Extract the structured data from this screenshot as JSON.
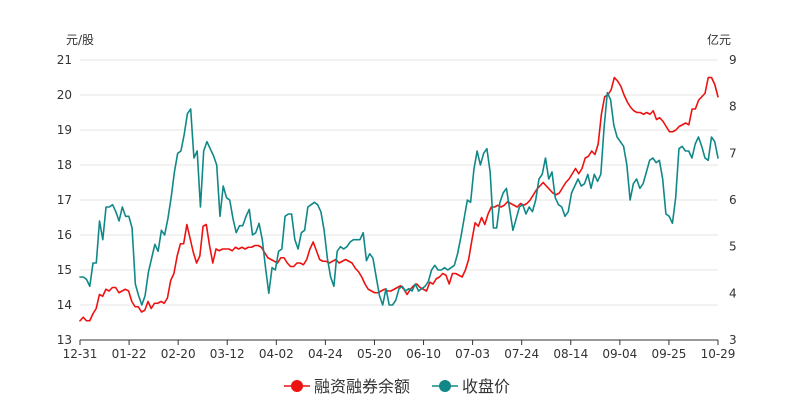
{
  "chart_data": {
    "type": "line",
    "left_unit": "元/股",
    "right_unit": "亿元",
    "y_left": {
      "min": 13,
      "max": 21,
      "ticks": [
        "13",
        "14",
        "15",
        "16",
        "17",
        "18",
        "19",
        "20",
        "21"
      ]
    },
    "y_right": {
      "min": 3,
      "max": 9,
      "ticks": [
        "3",
        "4",
        "5",
        "6",
        "7",
        "8",
        "9"
      ]
    },
    "x_tick_labels": [
      "12-31",
      "01-22",
      "02-20",
      "03-12",
      "04-02",
      "04-24",
      "05-20",
      "06-10",
      "07-03",
      "07-24",
      "08-14",
      "09-04",
      "09-25",
      "10-29"
    ],
    "series": [
      {
        "name": "融资融券余额",
        "axis": "left",
        "color": "#ee1111",
        "values": [
          13.55,
          13.65,
          13.55,
          13.55,
          13.75,
          13.9,
          14.3,
          14.25,
          14.45,
          14.4,
          14.5,
          14.5,
          14.35,
          14.4,
          14.45,
          14.4,
          14.1,
          13.95,
          13.95,
          13.8,
          13.85,
          14.1,
          13.9,
          14.05,
          14.05,
          14.1,
          14.05,
          14.2,
          14.7,
          14.9,
          15.4,
          15.75,
          15.75,
          16.3,
          15.9,
          15.5,
          15.2,
          15.4,
          16.25,
          16.3,
          15.7,
          15.2,
          15.6,
          15.55,
          15.6,
          15.6,
          15.6,
          15.55,
          15.65,
          15.6,
          15.65,
          15.6,
          15.65,
          15.65,
          15.7,
          15.7,
          15.65,
          15.5,
          15.35,
          15.3,
          15.25,
          15.2,
          15.35,
          15.35,
          15.2,
          15.1,
          15.1,
          15.2,
          15.2,
          15.15,
          15.3,
          15.6,
          15.8,
          15.55,
          15.3,
          15.25,
          15.25,
          15.2,
          15.25,
          15.3,
          15.2,
          15.25,
          15.3,
          15.25,
          15.2,
          15.05,
          14.95,
          14.8,
          14.6,
          14.45,
          14.4,
          14.35,
          14.35,
          14.4,
          14.45,
          14.4,
          14.4,
          14.45,
          14.5,
          14.55,
          14.45,
          14.3,
          14.45,
          14.55,
          14.6,
          14.5,
          14.45,
          14.4,
          14.65,
          14.6,
          14.75,
          14.8,
          14.9,
          14.85,
          14.6,
          14.9,
          14.9,
          14.85,
          14.8,
          15.0,
          15.3,
          15.85,
          16.35,
          16.25,
          16.5,
          16.3,
          16.6,
          16.8,
          16.8,
          16.85,
          16.8,
          16.85,
          16.95,
          16.9,
          16.85,
          16.8,
          16.9,
          16.85,
          16.9,
          17.0,
          17.15,
          17.3,
          17.4,
          17.5,
          17.4,
          17.3,
          17.2,
          17.15,
          17.2,
          17.35,
          17.5,
          17.6,
          17.75,
          17.9,
          17.75,
          17.9,
          18.2,
          18.25,
          18.4,
          18.3,
          18.6,
          19.45,
          19.95,
          20.0,
          20.15,
          20.5,
          20.4,
          20.25,
          20.0,
          19.8,
          19.65,
          19.55,
          19.5,
          19.5,
          19.45,
          19.5,
          19.45,
          19.55,
          19.3,
          19.35,
          19.25,
          19.1,
          18.95,
          18.95,
          19.0,
          19.1,
          19.15,
          19.2,
          19.15,
          19.6,
          19.6,
          19.85,
          19.95,
          20.05,
          20.5,
          20.5,
          20.3,
          19.95
        ]
      },
      {
        "name": "收盘价",
        "axis": "right",
        "color": "#118888",
        "values": [
          4.35,
          4.35,
          4.3,
          4.15,
          4.65,
          4.65,
          5.55,
          5.15,
          5.85,
          5.85,
          5.9,
          5.75,
          5.55,
          5.85,
          5.65,
          5.65,
          5.4,
          4.2,
          3.95,
          3.75,
          3.95,
          4.45,
          4.75,
          5.05,
          4.9,
          5.35,
          5.25,
          5.6,
          6.05,
          6.6,
          7.0,
          7.05,
          7.4,
          7.85,
          7.95,
          6.9,
          7.05,
          5.85,
          7.05,
          7.25,
          7.1,
          6.95,
          6.75,
          5.65,
          6.3,
          6.05,
          6.0,
          5.6,
          5.3,
          5.45,
          5.45,
          5.65,
          5.8,
          5.25,
          5.3,
          5.5,
          5.15,
          4.55,
          4.0,
          4.55,
          4.5,
          4.9,
          4.95,
          5.65,
          5.7,
          5.7,
          5.15,
          4.95,
          5.3,
          5.35,
          5.85,
          5.9,
          5.95,
          5.9,
          5.75,
          5.35,
          4.75,
          4.35,
          4.15,
          4.9,
          5.0,
          4.95,
          5.0,
          5.1,
          5.15,
          5.15,
          5.15,
          5.3,
          4.7,
          4.85,
          4.75,
          4.35,
          3.95,
          3.75,
          4.1,
          3.75,
          3.75,
          3.85,
          4.1,
          4.15,
          4.05,
          4.1,
          4.05,
          4.2,
          4.05,
          4.1,
          4.15,
          4.25,
          4.5,
          4.6,
          4.5,
          4.5,
          4.55,
          4.5,
          4.55,
          4.6,
          4.85,
          5.2,
          5.6,
          6.0,
          5.95,
          6.65,
          7.05,
          6.75,
          7.0,
          7.1,
          6.6,
          5.4,
          5.4,
          5.95,
          6.15,
          6.25,
          5.8,
          5.35,
          5.6,
          5.85,
          5.9,
          5.7,
          5.85,
          5.75,
          6.0,
          6.45,
          6.55,
          6.9,
          6.45,
          6.6,
          6.05,
          5.9,
          5.85,
          5.65,
          5.75,
          6.15,
          6.3,
          6.45,
          6.3,
          6.35,
          6.55,
          6.25,
          6.55,
          6.4,
          6.55,
          7.55,
          8.3,
          8.15,
          7.6,
          7.35,
          7.25,
          7.15,
          6.75,
          6.0,
          6.35,
          6.45,
          6.25,
          6.35,
          6.6,
          6.85,
          6.9,
          6.8,
          6.85,
          6.45,
          5.7,
          5.65,
          5.5,
          6.05,
          7.1,
          7.15,
          7.05,
          7.05,
          6.9,
          7.2,
          7.35,
          7.15,
          6.9,
          6.85,
          7.35,
          7.25,
          6.9
        ]
      }
    ],
    "grid": "horizontal",
    "legend": "bottom-center"
  }
}
